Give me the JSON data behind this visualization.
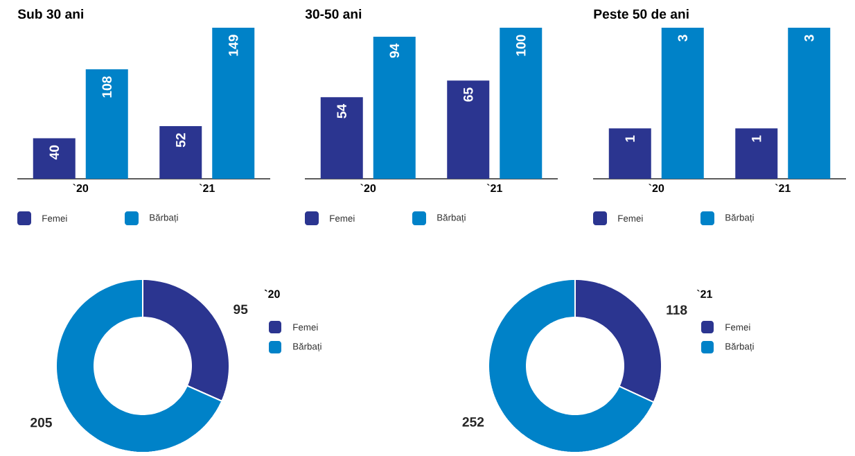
{
  "chart_data": [
    {
      "type": "bar",
      "title": "Sub 30 ani",
      "categories": [
        "`20",
        "`21"
      ],
      "series": [
        {
          "name": "Femei",
          "color": "#2b3590",
          "values": [
            40,
            52
          ]
        },
        {
          "name": "Bărbați",
          "color": "#0082c8",
          "values": [
            108,
            149
          ]
        }
      ],
      "data_labels": true,
      "legend": "bottom"
    },
    {
      "type": "bar",
      "title": "30-50 ani",
      "categories": [
        "`20",
        "`21"
      ],
      "series": [
        {
          "name": "Femei",
          "color": "#2b3590",
          "values": [
            54,
            65
          ]
        },
        {
          "name": "Bărbați",
          "color": "#0082c8",
          "values": [
            94,
            100
          ]
        }
      ],
      "data_labels": true,
      "legend": "bottom"
    },
    {
      "type": "bar",
      "title": "Peste 50 de ani",
      "categories": [
        "`20",
        "`21"
      ],
      "series": [
        {
          "name": "Femei",
          "color": "#2b3590",
          "values": [
            1,
            1
          ]
        },
        {
          "name": "Bărbați",
          "color": "#0082c8",
          "values": [
            3,
            3
          ]
        }
      ],
      "data_labels": true,
      "legend": "bottom"
    },
    {
      "type": "donut",
      "legend_title": "`20",
      "categories": [
        "Femei",
        "Bărbați"
      ],
      "values": [
        95,
        205
      ],
      "colors": [
        "#2b3590",
        "#0082c8"
      ],
      "data_labels": true,
      "legend": "right"
    },
    {
      "type": "donut",
      "legend_title": "`21",
      "categories": [
        "Femei",
        "Bărbați"
      ],
      "values": [
        118,
        252
      ],
      "colors": [
        "#2b3590",
        "#0082c8"
      ],
      "data_labels": true,
      "legend": "right"
    }
  ]
}
